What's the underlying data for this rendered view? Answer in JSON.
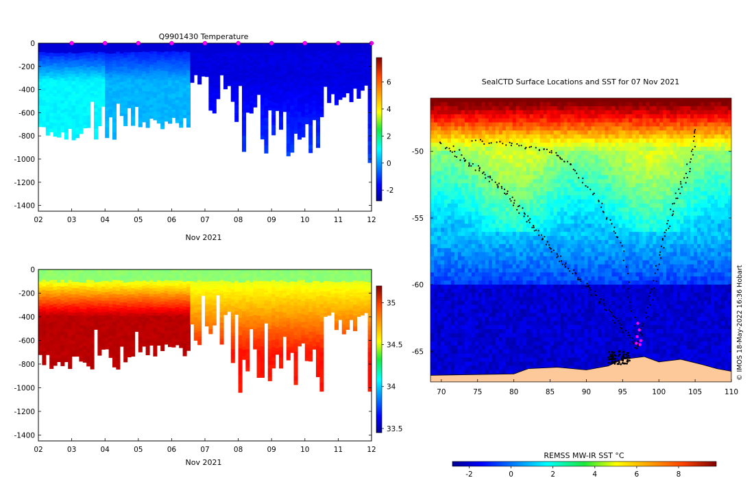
{
  "chart_data": [
    {
      "type": "heatmap",
      "title": "Q9901430  Temperature",
      "xlabel": "Nov 2021",
      "ylabel": "",
      "x_ticks": [
        "02",
        "03",
        "04",
        "05",
        "06",
        "07",
        "08",
        "09",
        "10",
        "11",
        "12"
      ],
      "xlim": [
        2,
        12
      ],
      "y_ticks": [
        0,
        -200,
        -400,
        -600,
        -800,
        -1000,
        -1200,
        -1400
      ],
      "ylim": [
        -1450,
        0
      ],
      "colorbar": {
        "ticks": [
          -2,
          0,
          2,
          4,
          6
        ],
        "range": [
          -2.8,
          7.8
        ]
      },
      "profile_markers": [
        3,
        4,
        5,
        6,
        7,
        8,
        9,
        10,
        11,
        12
      ]
    },
    {
      "type": "heatmap",
      "title": "",
      "xlabel": "Nov 2021",
      "ylabel": "",
      "x_ticks": [
        "02",
        "03",
        "04",
        "05",
        "06",
        "07",
        "08",
        "09",
        "10",
        "11",
        "12"
      ],
      "xlim": [
        2,
        12
      ],
      "y_ticks": [
        0,
        -200,
        -400,
        -600,
        -800,
        -1000,
        -1200,
        -1400
      ],
      "ylim": [
        -1450,
        0
      ],
      "colorbar": {
        "ticks": [
          33.5,
          34,
          34.5,
          35
        ],
        "range": [
          33.45,
          35.2
        ]
      }
    },
    {
      "type": "heatmap",
      "title": "SealCTD Surface Locations and SST for 07 Nov 2021",
      "xlabel": "",
      "ylabel": "",
      "x_ticks": [
        70,
        75,
        80,
        85,
        90,
        95,
        100,
        105,
        110
      ],
      "xlim": [
        68.5,
        110
      ],
      "y_ticks": [
        -50,
        -55,
        -60,
        -65
      ],
      "ylim": [
        -67.3,
        -46
      ],
      "colorbar": {
        "label": "REMSS MW-IR SST °C",
        "ticks": [
          -2,
          0,
          2,
          4,
          6,
          8
        ],
        "range": [
          -2.8,
          9.8
        ]
      },
      "credit": "© IMOS 18-May-2022 16:36 Hobart",
      "highlight_points": [
        [
          97.1,
          -62.9
        ],
        [
          97.3,
          -63.4
        ],
        [
          97.0,
          -63.9
        ],
        [
          97.5,
          -64.2
        ],
        [
          96.9,
          -64.4
        ],
        [
          97.4,
          -64.5
        ]
      ]
    }
  ]
}
